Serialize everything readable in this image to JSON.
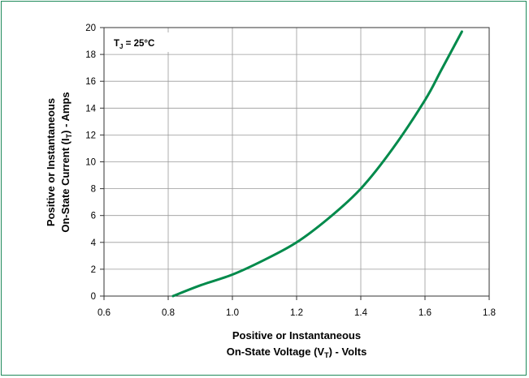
{
  "chart_data": {
    "type": "line",
    "annotation": "T_J = 25°C",
    "xlabel": {
      "line1": "Positive or Instantaneous",
      "line2_prefix": "On-State Voltage (V",
      "line2_sub": "T",
      "line2_suffix": ") - Volts"
    },
    "ylabel": {
      "line1": "Positive or Instantaneous",
      "line2_prefix": "On-State Current (I",
      "line2_sub": "T",
      "line2_suffix": ") - Amps"
    },
    "xlim": [
      0.6,
      1.8
    ],
    "ylim": [
      0,
      20
    ],
    "xticks": [
      0.6,
      0.8,
      1.0,
      1.2,
      1.4,
      1.6,
      1.8
    ],
    "xtick_labels": [
      "0.6",
      "0.8",
      "1.0",
      "1.2",
      "1.4",
      "1.6",
      "1.8"
    ],
    "yticks": [
      0,
      2,
      4,
      6,
      8,
      10,
      12,
      14,
      16,
      18,
      20
    ],
    "ytick_labels": [
      "0",
      "2",
      "4",
      "6",
      "8",
      "10",
      "12",
      "14",
      "16",
      "18",
      "20"
    ],
    "grid": true,
    "series": [
      {
        "color": "#008a4b",
        "x": [
          0.815,
          0.9,
          1.0,
          1.1,
          1.2,
          1.3,
          1.4,
          1.5,
          1.6,
          1.65,
          1.715
        ],
        "y": [
          0.0,
          0.8,
          1.6,
          2.7,
          4.0,
          5.8,
          8.0,
          11.0,
          14.6,
          16.8,
          19.7
        ]
      }
    ]
  }
}
